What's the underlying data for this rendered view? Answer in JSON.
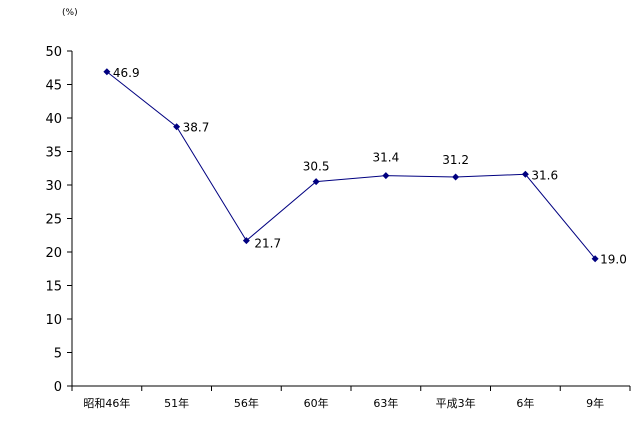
{
  "chart_data": {
    "type": "line",
    "title": "",
    "xlabel": "",
    "ylabel": "",
    "y_unit_label": "(%)",
    "categories": [
      "昭和46年",
      "51年",
      "56年",
      "60年",
      "63年",
      "平成3年",
      "6年",
      "9年"
    ],
    "series": [
      {
        "values": [
          46.9,
          38.7,
          21.7,
          30.5,
          31.4,
          31.2,
          31.6,
          19.0
        ],
        "data_labels": [
          "46.9",
          "38.7",
          "21.7",
          "30.5",
          "31.4",
          "31.2",
          "31.6",
          "19.0"
        ],
        "color": "#000080"
      }
    ],
    "ylim": [
      0,
      50
    ],
    "yticks": [
      0,
      5,
      10,
      15,
      20,
      25,
      30,
      35,
      40,
      45,
      50
    ],
    "ytick_labels": [
      "0",
      "5",
      "10",
      "15",
      "20",
      "25",
      "30",
      "35",
      "40",
      "45",
      "50"
    ],
    "grid": false,
    "legend": "none",
    "axis_color": "#000000"
  }
}
